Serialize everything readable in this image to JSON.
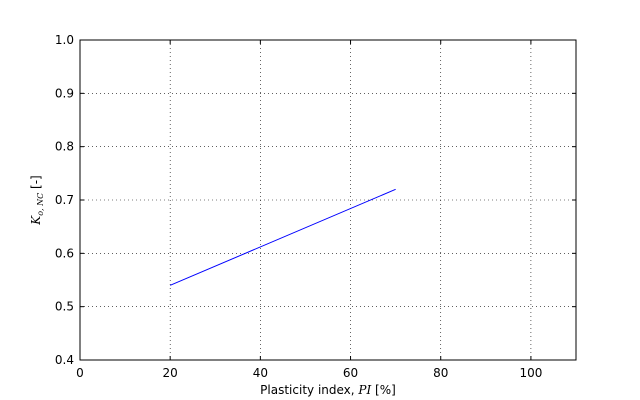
{
  "chart_data": {
    "type": "line",
    "title": "",
    "xlabel": {
      "prefix": "Plasticity index, ",
      "math": "PI",
      "suffix": " [%]"
    },
    "ylabel": {
      "math_main": "K",
      "math_sub": "o, NC",
      "suffix": " [-]"
    },
    "xlim": [
      0,
      110
    ],
    "ylim": [
      0.4,
      1.0
    ],
    "xticks": [
      0,
      20,
      40,
      60,
      80,
      100
    ],
    "xtick_labels": [
      "0",
      "20",
      "40",
      "60",
      "80",
      "100"
    ],
    "yticks": [
      0.4,
      0.5,
      0.6,
      0.7,
      0.8,
      0.9,
      1.0
    ],
    "ytick_labels": [
      "0.4",
      "0.5",
      "0.6",
      "0.7",
      "0.8",
      "0.9",
      "1.0"
    ],
    "grid": true,
    "legend": "none",
    "series": [
      {
        "color": "#0000ff",
        "x": [
          20,
          70
        ],
        "y": [
          0.54,
          0.72
        ]
      }
    ]
  }
}
